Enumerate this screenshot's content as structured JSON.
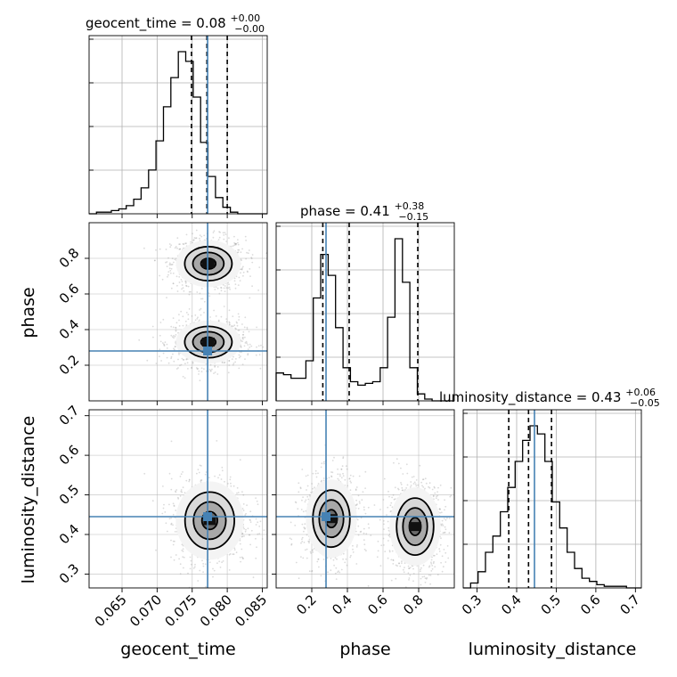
{
  "chart_data": {
    "type": "corner",
    "parameters": [
      "geocent_time",
      "phase",
      "luminosity_distance"
    ],
    "titles": [
      {
        "main": "geocent_time = 0.08",
        "sup": "+0.00",
        "sub": "−0.00"
      },
      {
        "main": "phase = 0.41",
        "sup": "+0.38",
        "sub": "−0.15"
      },
      {
        "main": "luminosity_distance = 0.43",
        "sup": "+0.06",
        "sub": "−0.05"
      }
    ],
    "ranges": [
      [
        0.0603,
        0.0857
      ],
      [
        0.0,
        1.0
      ],
      [
        0.265,
        0.715
      ]
    ],
    "ticks": [
      {
        "values": [
          0.065,
          0.07,
          0.075,
          0.08,
          0.085
        ],
        "labels": [
          "0.065",
          "0.070",
          "0.075",
          "0.080",
          "0.085"
        ]
      },
      {
        "values": [
          0.2,
          0.4,
          0.6,
          0.8
        ],
        "labels": [
          "0.2",
          "0.4",
          "0.6",
          "0.8"
        ]
      },
      {
        "values": [
          0.3,
          0.4,
          0.5,
          0.6,
          0.7
        ],
        "labels": [
          "0.3",
          "0.4",
          "0.5",
          "0.6",
          "0.7"
        ]
      }
    ],
    "truths": [
      0.0772,
      0.28,
      0.445
    ],
    "quantiles": [
      [
        0.0749,
        0.0771,
        0.08
      ],
      [
        0.262,
        0.41,
        0.795
      ],
      [
        0.38,
        0.43,
        0.488
      ]
    ],
    "histograms": [
      {
        "bin_start": 0.0603,
        "bin_width": 0.00106,
        "counts": [
          0,
          1,
          1,
          2,
          3,
          5,
          9,
          16,
          27,
          45,
          66,
          84,
          100,
          94,
          72,
          44,
          23,
          10,
          4,
          1,
          0,
          0,
          0,
          0
        ]
      },
      {
        "bin_start": 0.0,
        "bin_width": 0.0417,
        "counts": [
          16,
          15,
          13,
          13,
          23,
          59,
          84,
          72,
          42,
          19,
          11,
          9,
          10,
          11,
          19,
          48,
          93,
          68,
          19,
          4,
          1,
          0,
          0,
          0
        ]
      },
      {
        "bin_start": 0.265,
        "bin_width": 0.01875,
        "counts": [
          0,
          3,
          10,
          22,
          32,
          47,
          62,
          78,
          91,
          100,
          95,
          78,
          53,
          37,
          22,
          12,
          6,
          4,
          2,
          1,
          1,
          1,
          0,
          0
        ]
      }
    ],
    "modes_2d": {
      "geocent_time-phase": [
        {
          "x": 0.0773,
          "y": 0.77,
          "sx": 0.0021,
          "sy": 0.06
        },
        {
          "x": 0.0773,
          "y": 0.33,
          "sx": 0.0021,
          "sy": 0.055
        }
      ],
      "geocent_time-luminosity_distance": [
        {
          "x": 0.0775,
          "y": 0.435,
          "sx": 0.0022,
          "sy": 0.045
        }
      ],
      "phase-luminosity_distance": [
        {
          "x": 0.31,
          "y": 0.44,
          "sx": 0.065,
          "sy": 0.045
        },
        {
          "x": 0.78,
          "y": 0.42,
          "sx": 0.065,
          "sy": 0.045
        }
      ]
    },
    "grid": true
  }
}
